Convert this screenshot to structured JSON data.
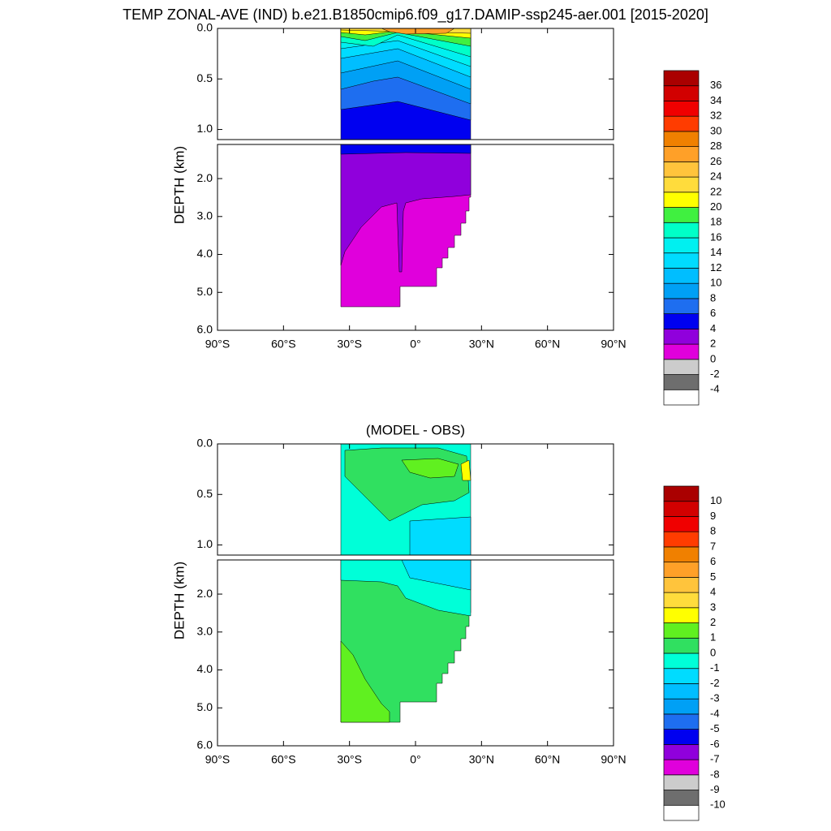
{
  "charts": [
    {
      "type": "contour",
      "title": "TEMP ZONAL-AVE (IND) b.e21.B1850cmip6.f09_g17.DAMIP-ssp245-aer.001 [2015-2020]",
      "ylabel": "DEPTH (km)",
      "xlim": [
        -90,
        90
      ],
      "xticks": [
        {
          "value": -90,
          "label": "90°S"
        },
        {
          "value": -60,
          "label": "60°S"
        },
        {
          "value": -30,
          "label": "30°S"
        },
        {
          "value": 0,
          "label": "0°"
        },
        {
          "value": 30,
          "label": "30°N"
        },
        {
          "value": 60,
          "label": "60°N"
        },
        {
          "value": 90,
          "label": "90°N"
        }
      ],
      "ylim": [
        [
          0,
          1.1
        ],
        [
          1.1,
          6.0
        ]
      ],
      "yticks": [
        {
          "value": 0,
          "label": "0.0"
        },
        {
          "value": 0.5,
          "label": "0.5"
        },
        {
          "value": 1,
          "label": "1.0"
        },
        {
          "value": 2,
          "label": "2.0"
        },
        {
          "value": 3,
          "label": "3.0"
        },
        {
          "value": 4,
          "label": "4.0"
        },
        {
          "value": 5,
          "label": "5.0"
        },
        {
          "value": 6,
          "label": "6.0"
        }
      ],
      "colorbar": {
        "levels": [
          -4,
          -2,
          0,
          2,
          4,
          6,
          8,
          10,
          12,
          14,
          16,
          18,
          20,
          22,
          24,
          26,
          28,
          30,
          32,
          34,
          36
        ],
        "colors": [
          "#ffffff",
          "#6e6e6e",
          "#cccccc",
          "#e000dc",
          "#9000dc",
          "#0000f0",
          "#1e6ef0",
          "#00a0f5",
          "#00beff",
          "#00dcff",
          "#00f0f0",
          "#00ffc8",
          "#40f040",
          "#ffff00",
          "#ffdc3c",
          "#ffc43c",
          "#ffa028",
          "#f08000",
          "#ff3c00",
          "#f00000",
          "#d20000",
          "#aa0000"
        ]
      }
    },
    {
      "type": "contour",
      "title": "(MODEL - OBS)",
      "ylabel": "DEPTH (km)",
      "xlim": [
        -90,
        90
      ],
      "xticks": [
        {
          "value": -90,
          "label": "90°S"
        },
        {
          "value": -60,
          "label": "60°S"
        },
        {
          "value": -30,
          "label": "30°S"
        },
        {
          "value": 0,
          "label": "0°"
        },
        {
          "value": 30,
          "label": "30°N"
        },
        {
          "value": 60,
          "label": "60°N"
        },
        {
          "value": 90,
          "label": "90°N"
        }
      ],
      "ylim": [
        [
          0,
          1.1
        ],
        [
          1.1,
          6.0
        ]
      ],
      "yticks": [
        {
          "value": 0,
          "label": "0.0"
        },
        {
          "value": 0.5,
          "label": "0.5"
        },
        {
          "value": 1,
          "label": "1.0"
        },
        {
          "value": 2,
          "label": "2.0"
        },
        {
          "value": 3,
          "label": "3.0"
        },
        {
          "value": 4,
          "label": "4.0"
        },
        {
          "value": 5,
          "label": "5.0"
        },
        {
          "value": 6,
          "label": "6.0"
        }
      ],
      "colorbar": {
        "levels": [
          -10,
          -9,
          -8,
          -7,
          -6,
          -5,
          -4,
          -3,
          -2,
          -1,
          0,
          1,
          2,
          3,
          4,
          5,
          6,
          7,
          8,
          9,
          10
        ],
        "colors": [
          "#ffffff",
          "#6e6e6e",
          "#cccccc",
          "#e000dc",
          "#9000dc",
          "#0000f0",
          "#1e6ef0",
          "#00a0f5",
          "#00beff",
          "#00dcff",
          "#00ffd8",
          "#30e060",
          "#60f020",
          "#ffff00",
          "#ffdc3c",
          "#ffc43c",
          "#ffa028",
          "#f08000",
          "#ff3c00",
          "#f00000",
          "#d20000",
          "#aa0000"
        ]
      }
    }
  ]
}
